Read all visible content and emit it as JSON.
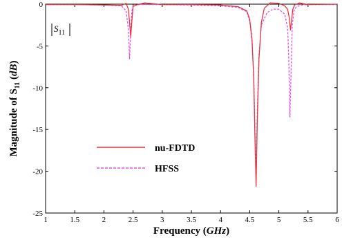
{
  "chart_data": {
    "type": "line",
    "xlabel_main": "Frequency",
    "xlabel_unit": "GHz",
    "ylabel_main": "Magnitude of S",
    "ylabel_sub": "11",
    "ylabel_unit": "dB",
    "annotation_main": "S",
    "annotation_sub": "11",
    "xlim": [
      1,
      6
    ],
    "ylim": [
      -25,
      0
    ],
    "xticks": [
      "1",
      "1.5",
      "2",
      "2.5",
      "3",
      "3.5",
      "4",
      "4.5",
      "5",
      "5.5",
      "6"
    ],
    "yticks": [
      "0",
      "-5",
      "-10",
      "-15",
      "-20",
      "-25"
    ],
    "grid": false,
    "legend_position": "lower-left",
    "series": [
      {
        "name": "nu-FDTD",
        "color": "#e8343a",
        "style": "solid",
        "x": [
          1.0,
          1.5,
          2.0,
          2.3,
          2.38,
          2.42,
          2.44,
          2.46,
          2.48,
          2.5,
          2.55,
          2.7,
          3.0,
          3.5,
          4.0,
          4.3,
          4.45,
          4.5,
          4.54,
          4.57,
          4.59,
          4.61,
          4.63,
          4.66,
          4.7,
          4.75,
          4.85,
          5.0,
          5.1,
          5.15,
          5.18,
          5.2,
          5.22,
          5.24,
          5.27,
          5.35,
          5.5,
          6.0
        ],
        "y": [
          -0.05,
          -0.05,
          -0.1,
          -0.15,
          0.1,
          -0.6,
          -2.2,
          -3.9,
          -2.0,
          -0.3,
          -0.1,
          0.15,
          -0.05,
          -0.05,
          -0.1,
          -0.3,
          -0.8,
          -1.8,
          -4.2,
          -9.0,
          -16.0,
          -21.8,
          -14.0,
          -6.5,
          -2.2,
          -0.5,
          0.15,
          0.1,
          -0.2,
          -0.6,
          -1.7,
          -3.1,
          -1.8,
          -0.6,
          -0.1,
          0.15,
          -0.05,
          0.0
        ]
      },
      {
        "name": "HFSS",
        "color": "#e84ce8",
        "style": "dashed",
        "x": [
          1.0,
          1.5,
          2.0,
          2.3,
          2.38,
          2.42,
          2.44,
          2.46,
          2.48,
          2.5,
          2.6,
          3.0,
          3.5,
          4.0,
          4.3,
          4.45,
          4.5,
          4.54,
          4.57,
          4.59,
          4.61,
          4.63,
          4.66,
          4.7,
          4.8,
          4.9,
          5.0,
          5.1,
          5.15,
          5.17,
          5.19,
          5.21,
          5.23,
          5.26,
          5.3,
          5.4,
          5.5,
          6.0
        ],
        "y": [
          -0.05,
          -0.05,
          -0.1,
          -0.2,
          -0.8,
          -3.0,
          -6.6,
          -3.2,
          -0.8,
          -0.2,
          -0.05,
          -0.05,
          -0.1,
          -0.2,
          -0.4,
          -0.9,
          -2.0,
          -4.5,
          -9.0,
          -15.5,
          -20.5,
          -13.0,
          -6.0,
          -2.5,
          -1.0,
          -0.6,
          -0.6,
          -1.2,
          -2.8,
          -6.5,
          -13.5,
          -8.0,
          -2.5,
          -0.8,
          -0.3,
          -0.1,
          -0.05,
          -0.05
        ]
      }
    ]
  }
}
